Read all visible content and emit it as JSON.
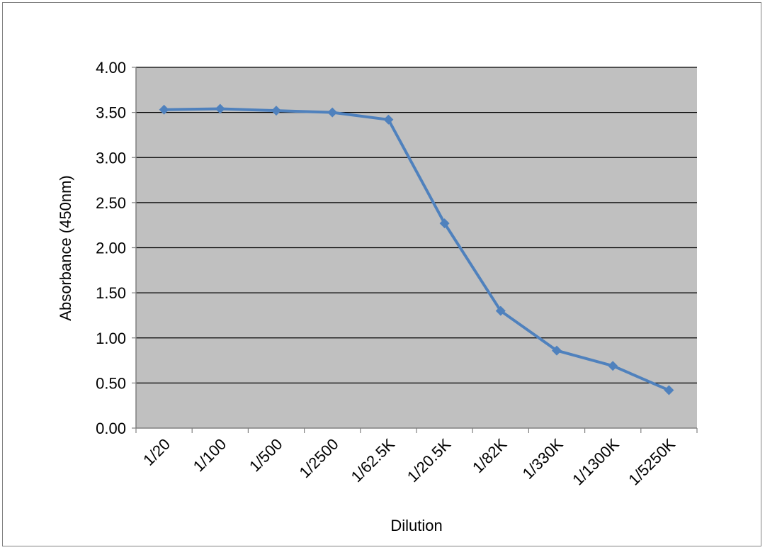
{
  "chart_data": {
    "type": "line",
    "categories": [
      "1/20",
      "1/100",
      "1/500",
      "1/2500",
      "1/62.5K",
      "1/20.5K",
      "1/82K",
      "1/330K",
      "1/1300K",
      "1/5250K"
    ],
    "series": [
      {
        "values": [
          3.53,
          3.54,
          3.52,
          3.5,
          3.42,
          2.27,
          1.3,
          0.86,
          0.69,
          0.42
        ]
      }
    ],
    "xlabel": "Dilution",
    "ylabel": "Absorbance (450nm)",
    "ylim": [
      0,
      4
    ],
    "yticks": [
      "0.00",
      "0.50",
      "1.00",
      "1.50",
      "2.00",
      "2.50",
      "3.00",
      "3.50",
      "4.00"
    ],
    "grid": "horizontal",
    "legend": "none",
    "colors": {
      "plot_background": "#c0c0c0",
      "line": "#4f81bd",
      "gridline": "#000000"
    }
  }
}
